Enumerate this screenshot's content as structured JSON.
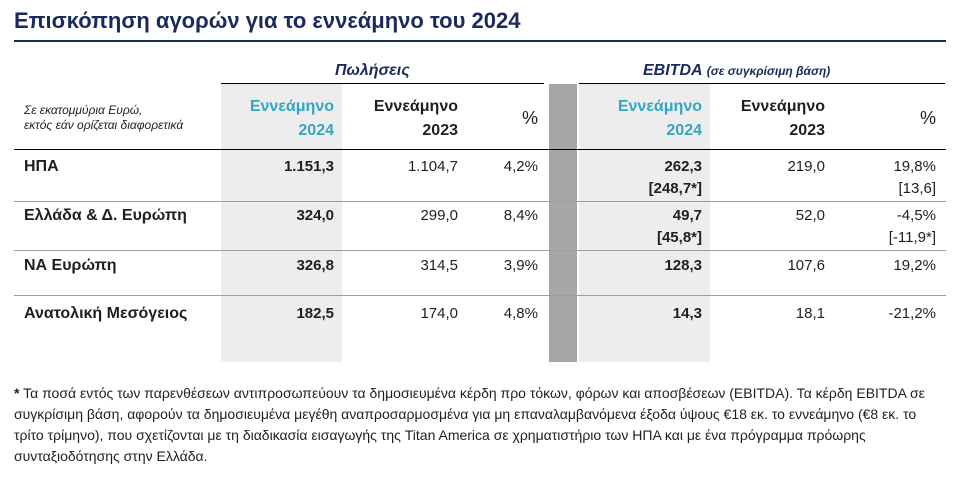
{
  "title": "Επισκόπηση αγορών για το εννεάμηνο του 2024",
  "headers": {
    "sales": "Πωλήσεις",
    "ebitda": "EBITDA",
    "ebitda_note": "(σε συγκρίσιμη βάση)",
    "units_note_1": "Σε εκατομμύρια Ευρώ,",
    "units_note_2": "εκτός εάν ορίζεται διαφορετικά",
    "cur_period_1": "Εννεάμηνο",
    "cur_period_2": "2024",
    "prev_period_1": "Εννεάμηνο",
    "prev_period_2": "2023",
    "pct": "%"
  },
  "rows": [
    {
      "label": "ΗΠΑ",
      "sales_2024": "1.151,3",
      "sales_2023": "1.104,7",
      "sales_pct": "4,2%",
      "ebitda_2024": "262,3",
      "ebitda_2024_adj": "[248,7*]",
      "ebitda_2023": "219,0",
      "ebitda_pct": "19,8%",
      "ebitda_pct_adj": "[13,6]"
    },
    {
      "label": "Ελλάδα & Δ. Ευρώπη",
      "sales_2024": "324,0",
      "sales_2023": "299,0",
      "sales_pct": "8,4%",
      "ebitda_2024": "49,7",
      "ebitda_2024_adj": "[45,8*]",
      "ebitda_2023": "52,0",
      "ebitda_pct": "-4,5%",
      "ebitda_pct_adj": "[-11,9*]"
    },
    {
      "label": "ΝΑ Ευρώπη",
      "sales_2024": "326,8",
      "sales_2023": "314,5",
      "sales_pct": "3,9%",
      "ebitda_2024": "128,3",
      "ebitda_2024_adj": "",
      "ebitda_2023": "107,6",
      "ebitda_pct": "19,2%",
      "ebitda_pct_adj": ""
    },
    {
      "label": "Ανατολική Μεσόγειος",
      "sales_2024": "182,5",
      "sales_2023": "174,0",
      "sales_pct": "4,8%",
      "ebitda_2024": "14,3",
      "ebitda_2024_adj": "",
      "ebitda_2023": "18,1",
      "ebitda_pct": "-21,2%",
      "ebitda_pct_adj": ""
    }
  ],
  "footnote": {
    "star": "*",
    "text": " Τα ποσά εντός των παρενθέσεων αντιπροσωπεύουν τα δημοσιευμένα κέρδη προ τόκων, φόρων και αποσβέσεων (EBITDA). Τα κέρδη EBITDA σε συγκρίσιμη βάση, αφορούν τα δημοσιευμένα μεγέθη αναπροσαρμοσμένα για μη επαναλαμβανόμενα έξοδα ύψους €18 εκ. το εννεάμηνο (€8 εκ. το τρίτο τρίμηνο), που σχετίζονται με τη διαδικασία εισαγωγής της Titan America σε χρηματιστήριο των ΗΠΑ και με ένα πρόγραμμα πρόωρης συνταξιοδότησης στην Ελλάδα."
  },
  "colors": {
    "title": "#1b2a5c",
    "accent_teal": "#33a6c6",
    "shade": "#ededed",
    "separator": "#a6a6a6"
  }
}
